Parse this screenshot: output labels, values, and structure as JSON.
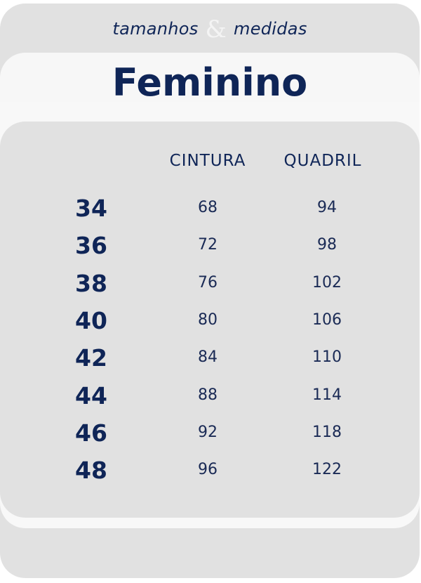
{
  "header": {
    "subtitle_left": "tamanhos",
    "ampersand": "&",
    "subtitle_right": "medidas",
    "title": "Feminino"
  },
  "table": {
    "columns": [
      "CINTURA",
      "QUADRIL"
    ],
    "rows": [
      {
        "size": "34",
        "cintura": "68",
        "quadril": "94"
      },
      {
        "size": "36",
        "cintura": "72",
        "quadril": "98"
      },
      {
        "size": "38",
        "cintura": "76",
        "quadril": "102"
      },
      {
        "size": "40",
        "cintura": "80",
        "quadril": "106"
      },
      {
        "size": "42",
        "cintura": "84",
        "quadril": "110"
      },
      {
        "size": "44",
        "cintura": "88",
        "quadril": "114"
      },
      {
        "size": "46",
        "cintura": "92",
        "quadril": "118"
      },
      {
        "size": "48",
        "cintura": "96",
        "quadril": "122"
      }
    ]
  },
  "colors": {
    "navy": "#0f2557",
    "panel": "#e1e1e1",
    "band": "#f7f7f7"
  }
}
